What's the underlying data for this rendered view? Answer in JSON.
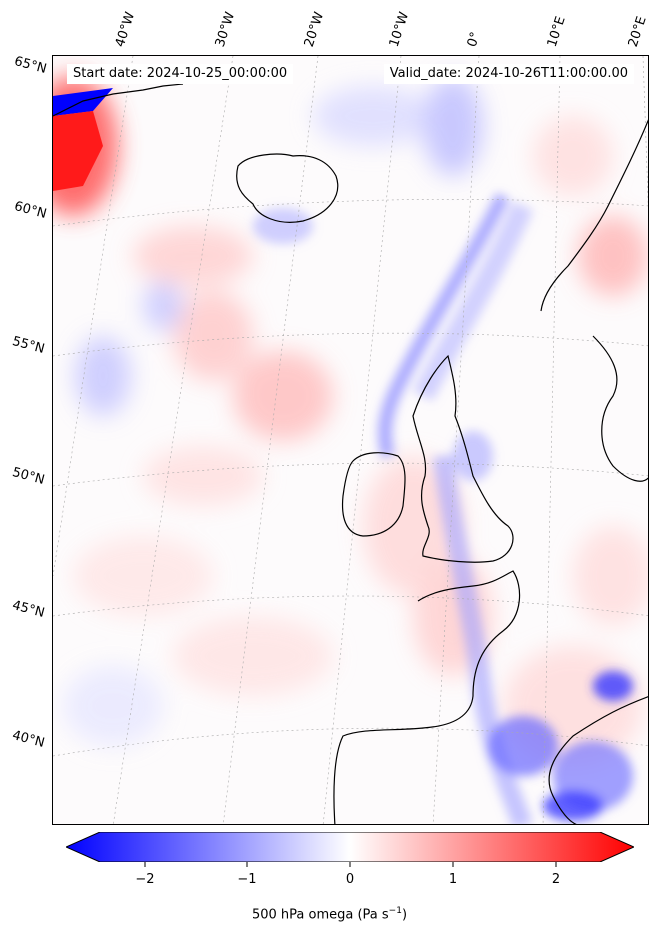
{
  "header": {
    "start_date": "Start date: 2024-10-25_00:00:00",
    "valid_date": "Valid_date: 2024-10-26T11:00:00.00"
  },
  "grid": {
    "longitude_labels": [
      "40°W",
      "30°W",
      "20°W",
      "10°W",
      "0°",
      "10°E",
      "20°E"
    ],
    "latitude_labels": [
      "65°N",
      "60°N",
      "55°N",
      "50°N",
      "45°N",
      "40°N"
    ]
  },
  "colorbar": {
    "label_prefix": "500 hPa omega (Pa s",
    "label_exponent": "−1",
    "label_suffix": ")",
    "ticks": [
      "−2",
      "−1",
      "0",
      "1",
      "2"
    ],
    "range": [
      -2.6,
      2.6
    ],
    "colormap": "bwr",
    "low_color": "#0000ff",
    "mid_color": "#ffffff",
    "high_color": "#ff0000"
  }
}
